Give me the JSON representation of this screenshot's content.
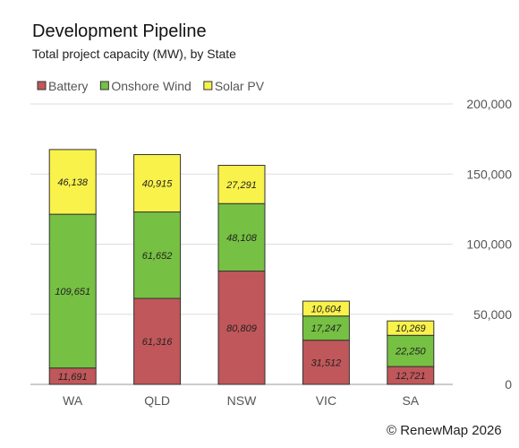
{
  "chart_data": {
    "type": "bar",
    "stacked": true,
    "title": "Development Pipeline",
    "subtitle": "Total project capacity (MW), by State",
    "categories": [
      "WA",
      "QLD",
      "NSW",
      "VIC",
      "SA"
    ],
    "series": [
      {
        "name": "Battery",
        "color": "#c0575a",
        "values": [
          11691,
          61316,
          80809,
          31512,
          12721
        ]
      },
      {
        "name": "Onshore Wind",
        "color": "#76c043",
        "values": [
          109651,
          61652,
          48108,
          17247,
          22250
        ]
      },
      {
        "name": "Solar PV",
        "color": "#f9f24a",
        "values": [
          46138,
          40915,
          27291,
          10604,
          10269
        ]
      }
    ],
    "data_labels": {
      "Battery": [
        "11,691",
        "61,316",
        "80,809",
        "31,512",
        "12,721"
      ],
      "Onshore Wind": [
        "109,651",
        "61,652",
        "48,108",
        "17,247",
        "22,250"
      ],
      "Solar PV": [
        "46,138",
        "40,915",
        "27,291",
        "10,604",
        "10,269"
      ]
    },
    "yaxis": {
      "position": "right",
      "ticks": [
        0,
        50000,
        100000,
        150000,
        200000
      ],
      "tick_labels": [
        "0",
        "50,000",
        "100,000",
        "150,000",
        "200,000"
      ]
    },
    "ylim": [
      0,
      200000
    ],
    "grid": true,
    "legend": "top-left"
  },
  "footer": "© RenewMap 2026"
}
